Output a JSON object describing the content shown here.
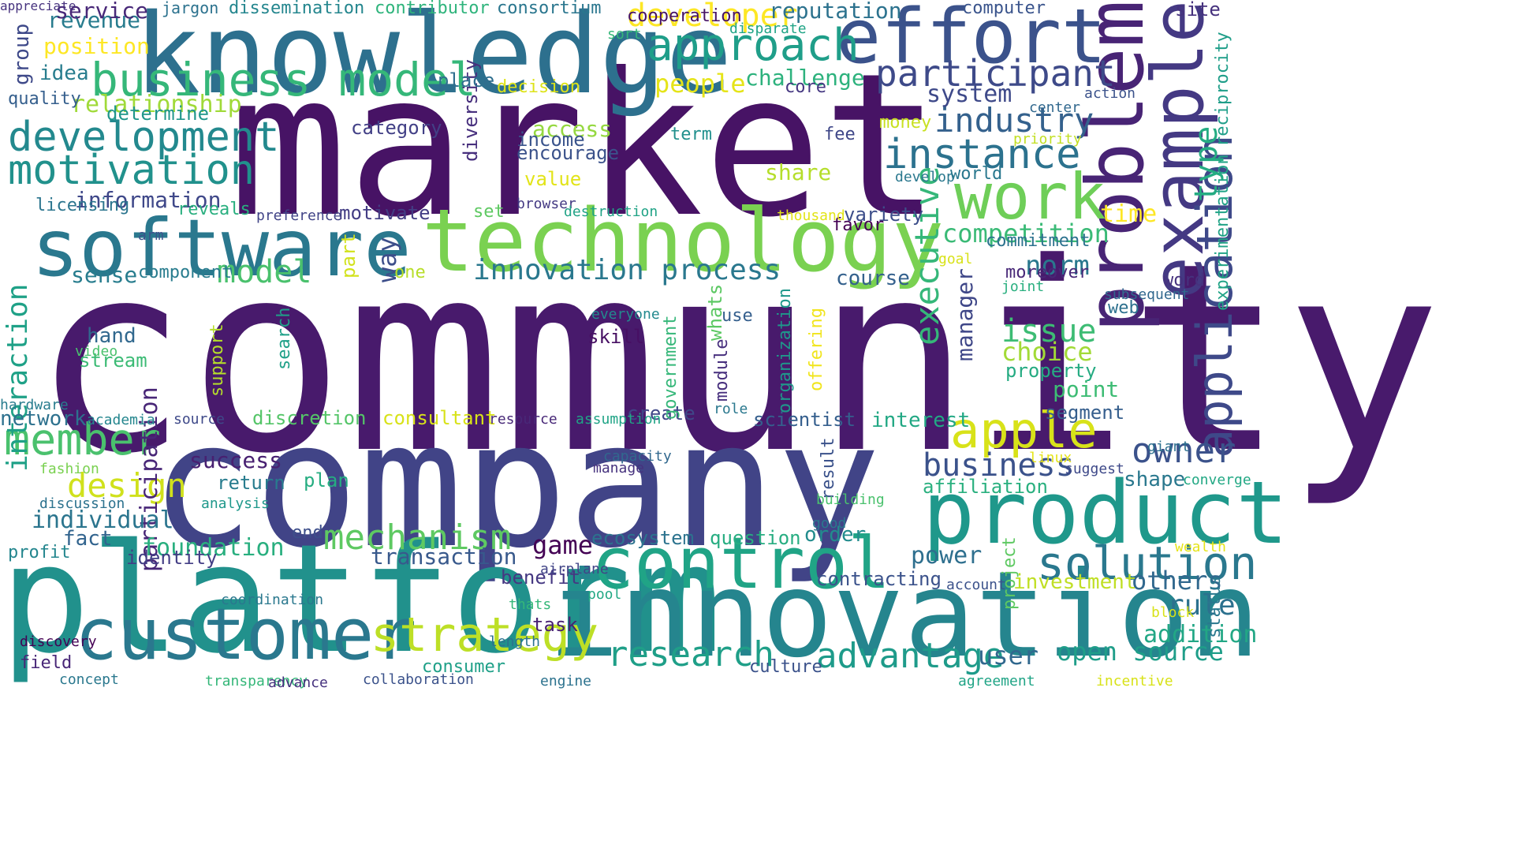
{
  "words": [
    {
      "text": "community",
      "color": "#481a6c",
      "vertical": false
    },
    {
      "text": "market",
      "color": "#471365",
      "vertical": false
    },
    {
      "text": "company",
      "color": "#414487",
      "vertical": false
    },
    {
      "text": "platform",
      "color": "#21918c",
      "vertical": false
    },
    {
      "text": "innovation",
      "color": "#25858e",
      "vertical": false
    },
    {
      "text": "knowledge",
      "color": "#2d708e",
      "vertical": false
    },
    {
      "text": "technology",
      "color": "#7ad151",
      "vertical": false
    },
    {
      "text": "software",
      "color": "#2a788e",
      "vertical": false
    },
    {
      "text": "product",
      "color": "#1f988b",
      "vertical": false
    },
    {
      "text": "problem",
      "color": "#482475",
      "vertical": true
    },
    {
      "text": "customer",
      "color": "#2a788e",
      "vertical": false
    },
    {
      "text": "effort",
      "color": "#3b528b",
      "vertical": false
    },
    {
      "text": "example",
      "color": "#443983",
      "vertical": true
    },
    {
      "text": "control",
      "color": "#20a486",
      "vertical": false
    },
    {
      "text": "work",
      "color": "#6ece58",
      "vertical": false
    },
    {
      "text": "business model",
      "color": "#35b779",
      "vertical": false
    },
    {
      "text": "development",
      "color": "#23898e",
      "vertical": false
    },
    {
      "text": "approach",
      "color": "#1f9e89",
      "vertical": false
    },
    {
      "text": "solution",
      "color": "#2a788e",
      "vertical": false
    },
    {
      "text": "motivation",
      "color": "#21918c",
      "vertical": false
    },
    {
      "text": "strategy",
      "color": "#bddf26",
      "vertical": false
    },
    {
      "text": "instance",
      "color": "#2c728e",
      "vertical": false
    },
    {
      "text": "member",
      "color": "#4ac16d",
      "vertical": false
    },
    {
      "text": "application",
      "color": "#3e4989",
      "vertical": true
    },
    {
      "text": "apple",
      "color": "#d8e219",
      "vertical": false
    },
    {
      "text": "participant",
      "color": "#3e4a89",
      "vertical": false
    },
    {
      "text": "research",
      "color": "#1f9f88",
      "vertical": false
    },
    {
      "text": "advantage",
      "color": "#1e9b8a",
      "vertical": false
    },
    {
      "text": "mechanism",
      "color": "#5ec962",
      "vertical": false
    },
    {
      "text": "industry",
      "color": "#34618d",
      "vertical": false
    },
    {
      "text": "business",
      "color": "#3b528b",
      "vertical": false
    },
    {
      "text": "executive",
      "color": "#35b779",
      "vertical": true
    },
    {
      "text": "developer",
      "color": "#fde725",
      "vertical": false
    },
    {
      "text": "type",
      "color": "#25ac82",
      "vertical": true
    },
    {
      "text": "innovation process",
      "color": "#2a788e",
      "vertical": false
    },
    {
      "text": "owner",
      "color": "#3b528b",
      "vertical": false
    },
    {
      "text": "model",
      "color": "#4ac16d",
      "vertical": false
    },
    {
      "text": "design",
      "color": "#d0e11c",
      "vertical": false
    },
    {
      "text": "interaction",
      "color": "#1fa187",
      "vertical": true
    },
    {
      "text": "participation",
      "color": "#482677",
      "vertical": true
    },
    {
      "text": "rule",
      "color": "#2c718e",
      "vertical": false
    },
    {
      "text": "open source",
      "color": "#1f9e89",
      "vertical": false
    },
    {
      "text": "issue",
      "color": "#3dbc74",
      "vertical": false
    },
    {
      "text": "others",
      "color": "#31688e",
      "vertical": false
    },
    {
      "text": "relationship",
      "color": "#a0da39",
      "vertical": false
    },
    {
      "text": "people",
      "color": "#e5e419",
      "vertical": false
    },
    {
      "text": "competition",
      "color": "#3aba76",
      "vertical": false
    },
    {
      "text": "choice",
      "color": "#a2da37",
      "vertical": false
    },
    {
      "text": "system",
      "color": "#3e4989",
      "vertical": false
    },
    {
      "text": "individual",
      "color": "#2b758e",
      "vertical": false
    },
    {
      "text": "foundation",
      "color": "#29af7f",
      "vertical": false
    },
    {
      "text": "transaction",
      "color": "#38598c",
      "vertical": false
    },
    {
      "text": "addition",
      "color": "#22a785",
      "vertical": false
    },
    {
      "text": "power",
      "color": "#2e6f8e",
      "vertical": false
    },
    {
      "text": "norm",
      "color": "#2a788e",
      "vertical": false
    },
    {
      "text": "game",
      "color": "#440154",
      "vertical": false
    },
    {
      "text": "user",
      "color": "#31688e",
      "vertical": false
    },
    {
      "text": "information",
      "color": "#3f4889",
      "vertical": false
    },
    {
      "text": "position",
      "color": "#fde725",
      "vertical": false
    },
    {
      "text": "way",
      "color": "#3d4e8a",
      "vertical": true
    },
    {
      "text": "challenge",
      "color": "#2db27d",
      "vertical": false
    },
    {
      "text": "revenue",
      "color": "#287c8e",
      "vertical": false
    },
    {
      "text": "service",
      "color": "#482878",
      "vertical": false
    },
    {
      "text": "reputation",
      "color": "#2c728e",
      "vertical": false
    },
    {
      "text": "success",
      "color": "#482071",
      "vertical": false
    },
    {
      "text": "interest",
      "color": "#22a884",
      "vertical": false
    },
    {
      "text": "shape",
      "color": "#2a788e",
      "vertical": false
    },
    {
      "text": "point",
      "color": "#3dbc74",
      "vertical": false
    },
    {
      "text": "investment",
      "color": "#c0df25",
      "vertical": false
    },
    {
      "text": "access",
      "color": "#95d840",
      "vertical": false
    },
    {
      "text": "share",
      "color": "#b5de2b",
      "vertical": false
    },
    {
      "text": "fact",
      "color": "#32648e",
      "vertical": false
    },
    {
      "text": "course",
      "color": "#34618d",
      "vertical": false
    },
    {
      "text": "manager",
      "color": "#3f4788",
      "vertical": true
    },
    {
      "text": "time",
      "color": "#fde725",
      "vertical": false
    },
    {
      "text": "order",
      "color": "#228c8d",
      "vertical": false
    },
    {
      "text": "sense",
      "color": "#287d8e",
      "vertical": false
    },
    {
      "text": "task",
      "color": "#482173",
      "vertical": false
    },
    {
      "text": "scientist",
      "color": "#355f8d",
      "vertical": false
    },
    {
      "text": "discretion",
      "color": "#54c568",
      "vertical": false
    },
    {
      "text": "identity",
      "color": "#433e85",
      "vertical": false
    },
    {
      "text": "return",
      "color": "#287c8e",
      "vertical": false
    },
    {
      "text": "hand",
      "color": "#31688e",
      "vertical": false
    },
    {
      "text": "variety",
      "color": "#3d4e8a",
      "vertical": false
    },
    {
      "text": "consultant",
      "color": "#d8e219",
      "vertical": false
    },
    {
      "text": "diversity",
      "color": "#472f7d",
      "vertical": true
    },
    {
      "text": "place",
      "color": "#2e6e8e",
      "vertical": false
    },
    {
      "text": "network",
      "color": "#2d718e",
      "vertical": false
    },
    {
      "text": "plan",
      "color": "#26ad81",
      "vertical": false
    },
    {
      "text": "segment",
      "color": "#355e8d",
      "vertical": false
    },
    {
      "text": "idea",
      "color": "#287d8e",
      "vertical": false
    },
    {
      "text": "affiliation",
      "color": "#2ab07f",
      "vertical": false
    },
    {
      "text": "ecosystem",
      "color": "#2c738e",
      "vertical": false
    },
    {
      "text": "question",
      "color": "#27ad81",
      "vertical": false
    },
    {
      "text": "profit",
      "color": "#24868e",
      "vertical": false
    },
    {
      "text": "determine",
      "color": "#1f968b",
      "vertical": false
    },
    {
      "text": "property",
      "color": "#25ab82",
      "vertical": false
    },
    {
      "text": "contracting",
      "color": "#3b528b",
      "vertical": false
    },
    {
      "text": "benefit",
      "color": "#453882",
      "vertical": false
    },
    {
      "text": "category",
      "color": "#424086",
      "vertical": false
    },
    {
      "text": "part",
      "color": "#d2e21b",
      "vertical": true
    },
    {
      "text": "component",
      "color": "#287c8e",
      "vertical": false
    },
    {
      "text": "create",
      "color": "#3f4788",
      "vertical": false
    },
    {
      "text": "whats",
      "color": "#5cc863",
      "vertical": true
    },
    {
      "text": "reveals",
      "color": "#29af7f",
      "vertical": false
    },
    {
      "text": "income",
      "color": "#3a548c",
      "vertical": false
    },
    {
      "text": "encourage",
      "color": "#3b528b",
      "vertical": false
    },
    {
      "text": "field",
      "color": "#482677",
      "vertical": false
    },
    {
      "text": "skill",
      "color": "#471063",
      "vertical": false
    },
    {
      "text": "motivate",
      "color": "#433d84",
      "vertical": false
    },
    {
      "text": "stream",
      "color": "#3cbb75",
      "vertical": false
    },
    {
      "text": "licensing",
      "color": "#2b758e",
      "vertical": false
    },
    {
      "text": "consumer",
      "color": "#1fa088",
      "vertical": false
    },
    {
      "text": "money",
      "color": "#c8e020",
      "vertical": false
    },
    {
      "text": "quality",
      "color": "#355f8d",
      "vertical": false
    },
    {
      "text": "group",
      "color": "#3e4989",
      "vertical": true
    },
    {
      "text": "value",
      "color": "#e2e418",
      "vertical": false
    },
    {
      "text": "decision",
      "color": "#dde318",
      "vertical": false
    },
    {
      "text": "favor",
      "color": "#440154",
      "vertical": false
    },
    {
      "text": "commitment",
      "color": "#2c728e",
      "vertical": false
    },
    {
      "text": "dissemination",
      "color": "#24868e",
      "vertical": false
    },
    {
      "text": "contributor",
      "color": "#2fb47c",
      "vertical": false
    },
    {
      "text": "consortium",
      "color": "#2a768e",
      "vertical": false
    },
    {
      "text": "cooperation",
      "color": "#471365",
      "vertical": false
    },
    {
      "text": "computer",
      "color": "#3a548c",
      "vertical": false
    },
    {
      "text": "site",
      "color": "#46327e",
      "vertical": false
    },
    {
      "text": "core",
      "color": "#453781",
      "vertical": false
    },
    {
      "text": "term",
      "color": "#21908d",
      "vertical": false
    },
    {
      "text": "fee",
      "color": "#3f4788",
      "vertical": false
    },
    {
      "text": "set",
      "color": "#5ec962",
      "vertical": false
    },
    {
      "text": "world",
      "color": "#2a788e",
      "vertical": false
    },
    {
      "text": "use",
      "color": "#355f8d",
      "vertical": false
    },
    {
      "text": "one",
      "color": "#b8de29",
      "vertical": false
    },
    {
      "text": "moreover",
      "color": "#482878",
      "vertical": false
    },
    {
      "text": "word",
      "color": "#46327e",
      "vertical": false
    },
    {
      "text": "web",
      "color": "#2d708e",
      "vertical": false
    },
    {
      "text": "culture",
      "color": "#3b528b",
      "vertical": false
    },
    {
      "text": "end",
      "color": "#3d4e8a",
      "vertical": false
    },
    {
      "text": "search",
      "color": "#1fa088",
      "vertical": true
    },
    {
      "text": "support",
      "color": "#b5de2b",
      "vertical": true
    },
    {
      "text": "government",
      "color": "#35b779",
      "vertical": true
    },
    {
      "text": "module",
      "color": "#472f7d",
      "vertical": true
    },
    {
      "text": "organization",
      "color": "#1f988b",
      "vertical": true
    },
    {
      "text": "offering",
      "color": "#f1e51d",
      "vertical": true
    },
    {
      "text": "project",
      "color": "#5ec962",
      "vertical": true
    },
    {
      "text": "reciprocity",
      "color": "#1f9e89",
      "vertical": true
    },
    {
      "text": "experimentation",
      "color": "#20a386",
      "vertical": true
    },
    {
      "text": "status",
      "color": "#2a788e",
      "vertical": true
    },
    {
      "text": "result",
      "color": "#3b528b",
      "vertical": true
    },
    {
      "text": "jargon",
      "color": "#2c728e",
      "vertical": false
    },
    {
      "text": "sort",
      "color": "#35b779",
      "vertical": false
    },
    {
      "text": "disparate",
      "color": "#20a486",
      "vertical": false
    },
    {
      "text": "action",
      "color": "#3b528b",
      "vertical": false
    },
    {
      "text": "center",
      "color": "#31688e",
      "vertical": false
    },
    {
      "text": "priority",
      "color": "#c2df23",
      "vertical": false
    },
    {
      "text": "develop",
      "color": "#2a788e",
      "vertical": false
    },
    {
      "text": "browser",
      "color": "#443a83",
      "vertical": false
    },
    {
      "text": "destruction",
      "color": "#20a386",
      "vertical": false
    },
    {
      "text": "thousand",
      "color": "#e2e418",
      "vertical": false
    },
    {
      "text": "preference",
      "color": "#414487",
      "vertical": false
    },
    {
      "text": "arm",
      "color": "#3b528b",
      "vertical": false
    },
    {
      "text": "goal",
      "color": "#d8e219",
      "vertical": false
    },
    {
      "text": "joint",
      "color": "#29af7f",
      "vertical": false
    },
    {
      "text": "subsequent",
      "color": "#31688e",
      "vertical": false
    },
    {
      "text": "everyone",
      "color": "#23898e",
      "vertical": false
    },
    {
      "text": "video",
      "color": "#4ac16d",
      "vertical": false
    },
    {
      "text": "hardware",
      "color": "#287c8e",
      "vertical": false
    },
    {
      "text": "academia",
      "color": "#24868e",
      "vertical": false
    },
    {
      "text": "source",
      "color": "#3e4989",
      "vertical": false
    },
    {
      "text": "resource",
      "color": "#482878",
      "vertical": false
    },
    {
      "text": "assumption",
      "color": "#20a486",
      "vertical": false
    },
    {
      "text": "role",
      "color": "#2a788e",
      "vertical": false
    },
    {
      "text": "giant",
      "color": "#2d708e",
      "vertical": false
    },
    {
      "text": "capacity",
      "color": "#31688e",
      "vertical": false
    },
    {
      "text": "manage",
      "color": "#46327e",
      "vertical": false
    },
    {
      "text": "linux",
      "color": "#e5e419",
      "vertical": false
    },
    {
      "text": "suggest",
      "color": "#3e4989",
      "vertical": false
    },
    {
      "text": "converge",
      "color": "#22a884",
      "vertical": false
    },
    {
      "text": "fashion",
      "color": "#7ad151",
      "vertical": false
    },
    {
      "text": "discussion",
      "color": "#2c728e",
      "vertical": false
    },
    {
      "text": "analysis",
      "color": "#1f988b",
      "vertical": false
    },
    {
      "text": "building",
      "color": "#4ac16d",
      "vertical": false
    },
    {
      "text": "good",
      "color": "#2a788e",
      "vertical": false
    },
    {
      "text": "wealth",
      "color": "#e5e419",
      "vertical": false
    },
    {
      "text": "airplane",
      "color": "#414487",
      "vertical": false
    },
    {
      "text": "account",
      "color": "#3b528b",
      "vertical": false
    },
    {
      "text": "pool",
      "color": "#22a884",
      "vertical": false
    },
    {
      "text": "coordination",
      "color": "#2a788e",
      "vertical": false
    },
    {
      "text": "thats",
      "color": "#35b779",
      "vertical": false
    },
    {
      "text": "block",
      "color": "#d8e219",
      "vertical": false
    },
    {
      "text": "length",
      "color": "#2c728e",
      "vertical": false
    },
    {
      "text": "discovery",
      "color": "#440154",
      "vertical": false
    },
    {
      "text": "concept",
      "color": "#2a788e",
      "vertical": false
    },
    {
      "text": "transparency",
      "color": "#35b779",
      "vertical": false
    },
    {
      "text": "advance",
      "color": "#46327e",
      "vertical": false
    },
    {
      "text": "collaboration",
      "color": "#3b528b",
      "vertical": false
    },
    {
      "text": "engine",
      "color": "#2c728e",
      "vertical": false
    },
    {
      "text": "agreement",
      "color": "#20a486",
      "vertical": false
    },
    {
      "text": "incentive",
      "color": "#d8e219",
      "vertical": false
    },
    {
      "text": "appreciate",
      "color": "#46327e",
      "vertical": false
    }
  ]
}
